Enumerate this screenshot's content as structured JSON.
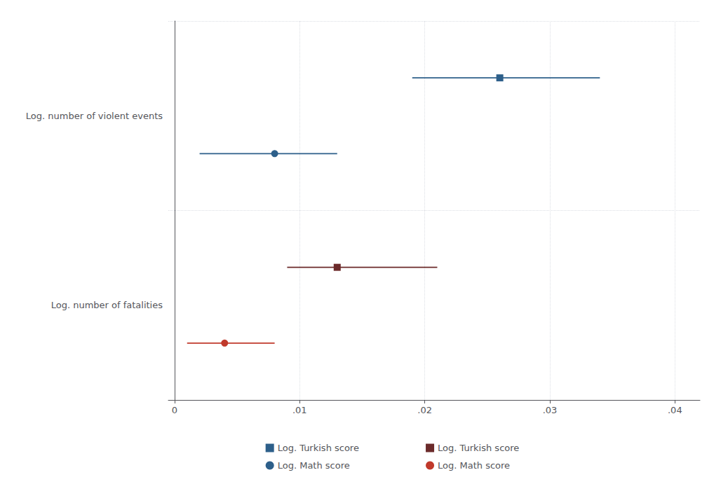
{
  "chart_data": {
    "type": "scatter",
    "orientation": "horizontal",
    "categories": [
      "Log. number of violent events",
      "Log. number of fatalities"
    ],
    "series": [
      {
        "name": "Log. Turkish score",
        "color": "#2d5f8a",
        "marker": "square",
        "values": [
          0.026,
          null
        ],
        "low": [
          0.019,
          null
        ],
        "high": [
          0.034,
          null
        ]
      },
      {
        "name": "Log. Math score",
        "color": "#2d5f8a",
        "marker": "circle",
        "values": [
          0.008,
          null
        ],
        "low": [
          0.002,
          null
        ],
        "high": [
          0.013,
          null
        ]
      },
      {
        "name": "Log. Turkish score",
        "color": "#6b2a2a",
        "marker": "square",
        "values": [
          null,
          0.013
        ],
        "low": [
          null,
          0.009
        ],
        "high": [
          null,
          0.021
        ]
      },
      {
        "name": "Log. Math score",
        "color": "#c0392b",
        "marker": "circle",
        "values": [
          null,
          0.004
        ],
        "low": [
          null,
          0.001
        ],
        "high": [
          null,
          0.008
        ]
      }
    ],
    "xlim": [
      -0.0005,
      0.042
    ],
    "xticks": [
      0,
      {
        "value": 0.01,
        "label": ".01"
      },
      {
        "value": 0.02,
        "label": ".02"
      },
      {
        "value": 0.03,
        "label": ".03"
      },
      {
        "value": 0.04,
        "label": ".04"
      }
    ],
    "grid": true,
    "legend": "bottom"
  }
}
